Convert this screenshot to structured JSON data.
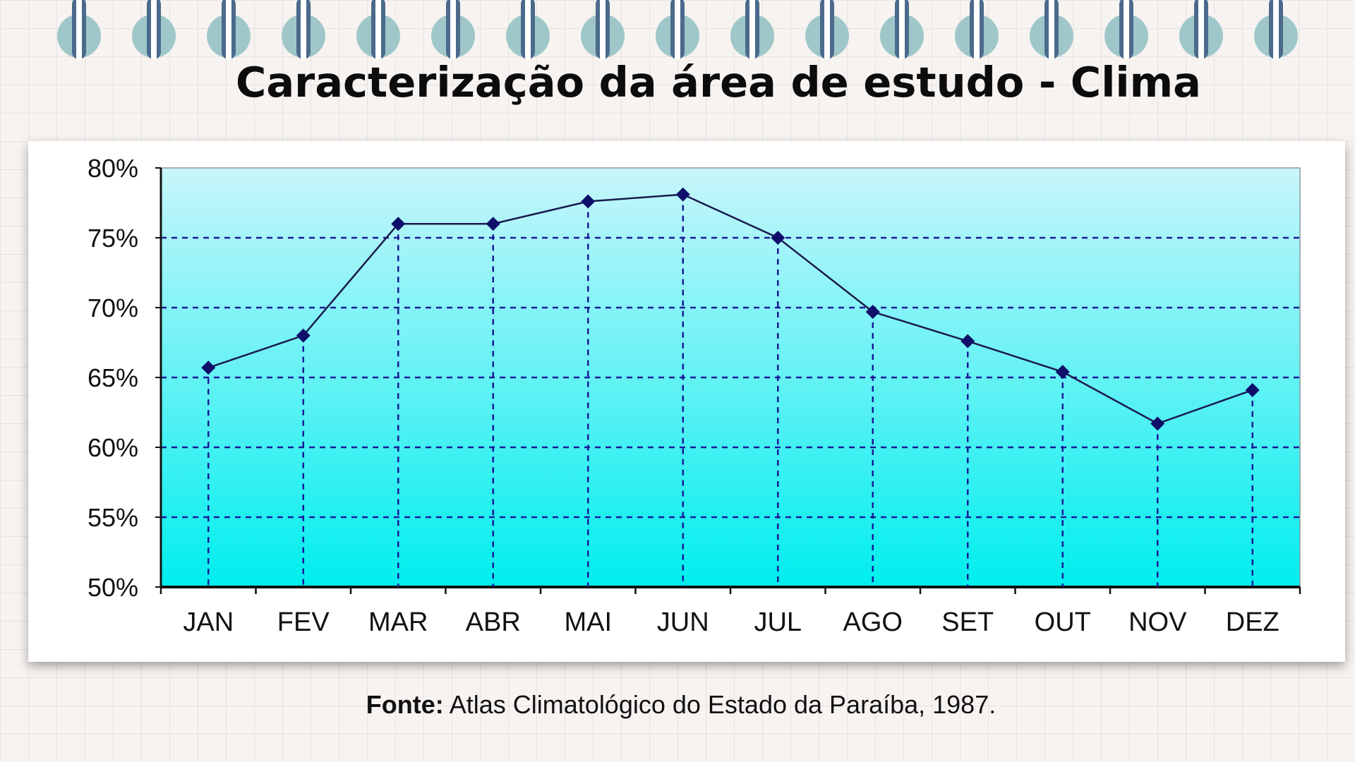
{
  "slide": {
    "title": "Caracterização da área de estudo - Clima",
    "source_label": "Fonte:",
    "source_text": "Atlas Climatológico do Estado da Paraíba, 1987."
  },
  "colors": {
    "ring": "#9fc7c9",
    "ring_pin": "#4b6a8c",
    "plot_top": "#c8f6fb",
    "plot_bottom": "#00eeee",
    "line": "#1a1a4e",
    "marker": "#0f0f6a",
    "grid": "#1a1a99"
  },
  "chart_data": {
    "type": "line",
    "categories": [
      "JAN",
      "FEV",
      "MAR",
      "ABR",
      "MAI",
      "JUN",
      "JUL",
      "AGO",
      "SET",
      "OUT",
      "NOV",
      "DEZ"
    ],
    "series": [
      {
        "values": [
          65.7,
          68.0,
          76.0,
          76.0,
          77.6,
          78.1,
          75.0,
          69.7,
          67.6,
          65.4,
          61.7,
          64.1
        ]
      }
    ],
    "ylim": [
      50,
      80
    ],
    "yticks": [
      "50%",
      "55%",
      "60%",
      "65%",
      "70%",
      "75%",
      "80%"
    ],
    "grid": true,
    "legend": "none"
  }
}
